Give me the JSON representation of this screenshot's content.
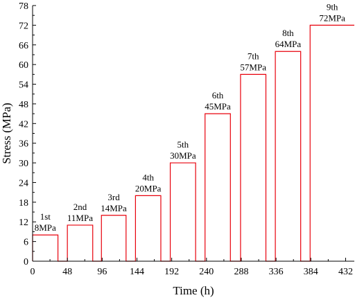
{
  "chart_data": {
    "type": "line",
    "xlabel": "Time (h)",
    "ylabel": "Stress (MPa)",
    "xlim": [
      0,
      444
    ],
    "ylim": [
      0,
      78
    ],
    "xticks": [
      0,
      48,
      96,
      144,
      192,
      240,
      288,
      336,
      384,
      432
    ],
    "yticks": [
      0,
      6,
      12,
      18,
      24,
      30,
      36,
      42,
      48,
      54,
      60,
      66,
      72,
      78
    ],
    "grid": false,
    "line_color": "#e8000b",
    "steps": [
      {
        "label": "1st",
        "value_label": "8MPa",
        "stress": 8,
        "start": 0,
        "end": 35
      },
      {
        "label": "2nd",
        "value_label": "11MPa",
        "stress": 11,
        "start": 48,
        "end": 83
      },
      {
        "label": "3rd",
        "value_label": "14MPa",
        "stress": 14,
        "start": 95,
        "end": 129
      },
      {
        "label": "4th",
        "value_label": "20MPa",
        "stress": 20,
        "start": 142,
        "end": 177
      },
      {
        "label": "5th",
        "value_label": "30MPa",
        "stress": 30,
        "start": 190,
        "end": 225
      },
      {
        "label": "6th",
        "value_label": "45MPa",
        "stress": 45,
        "start": 238,
        "end": 273
      },
      {
        "label": "7th",
        "value_label": "57MPa",
        "stress": 57,
        "start": 287,
        "end": 322
      },
      {
        "label": "8th",
        "value_label": "64MPa",
        "stress": 64,
        "start": 335,
        "end": 370
      },
      {
        "label": "9th",
        "value_label": "72MPa",
        "stress": 72,
        "start": 383,
        "end": 444
      }
    ]
  }
}
